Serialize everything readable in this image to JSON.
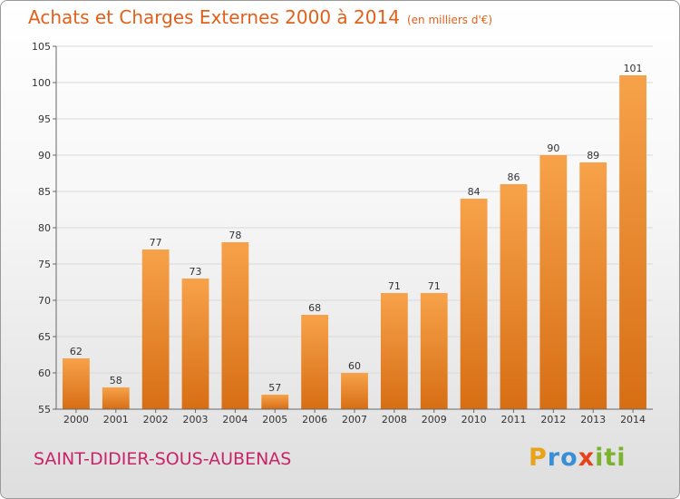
{
  "header": {
    "title": "Achats et Charges Externes 2000 à 2014",
    "unit": "(en milliers d'€)"
  },
  "footer": {
    "commune": "SAINT-DIDIER-SOUS-AUBENAS",
    "logo": {
      "letters": [
        "P",
        "r",
        "o",
        "x",
        "i",
        "t",
        "i"
      ],
      "colors": [
        "#e8a317",
        "#3a8ed6",
        "#3a8ed6",
        "#e8421c",
        "#7ab32e",
        "#7ab32e",
        "#7ab32e"
      ]
    }
  },
  "colors": {
    "accent": "#e2601a",
    "bar_light": "#f7a24a",
    "bar_dark": "#d76e14",
    "grid": "#d9d9d9"
  },
  "chart_data": {
    "type": "bar",
    "categories": [
      "2000",
      "2001",
      "2002",
      "2003",
      "2004",
      "2005",
      "2006",
      "2007",
      "2008",
      "2009",
      "2010",
      "2011",
      "2012",
      "2013",
      "2014"
    ],
    "values": [
      62,
      58,
      77,
      73,
      78,
      57,
      68,
      60,
      71,
      71,
      84,
      86,
      90,
      89,
      101
    ],
    "title": "Achats et Charges Externes 2000 à 2014",
    "subtitle": "(en milliers d'€)",
    "xlabel": "",
    "ylabel": "",
    "ylim": [
      55,
      105
    ],
    "yticks": [
      55,
      60,
      65,
      70,
      75,
      80,
      85,
      90,
      95,
      100,
      105
    ],
    "grid": true,
    "data_labels": true
  }
}
